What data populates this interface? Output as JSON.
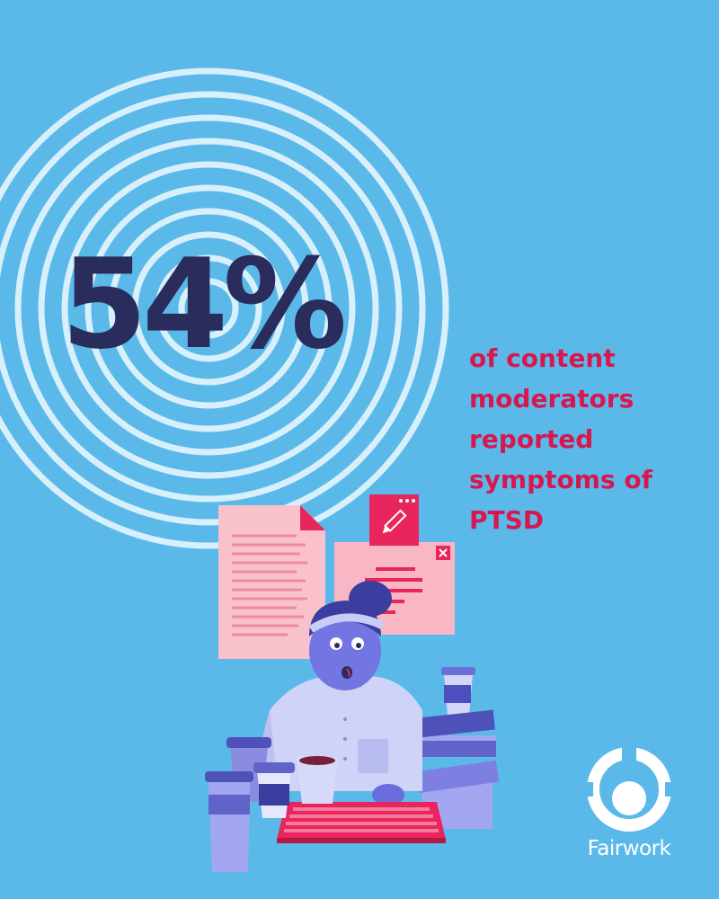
{
  "headline": {
    "stat": "54%",
    "caption_lines": [
      "of content",
      "moderators",
      "reported",
      "symptoms of",
      "PTSD"
    ]
  },
  "brand": {
    "name": "Fairwork"
  },
  "colors": {
    "background": "#5bb9ea",
    "rings": "#d7f0fb",
    "stat": "#2a2d5c",
    "caption": "#d8174f",
    "logo": "#ffffff"
  },
  "illustration": {
    "icons": [
      "document-icon",
      "edit-window-icon",
      "close-icon",
      "pencil-icon",
      "keyboard-icon",
      "coffee-cup-icon",
      "book-stack-icon"
    ]
  }
}
